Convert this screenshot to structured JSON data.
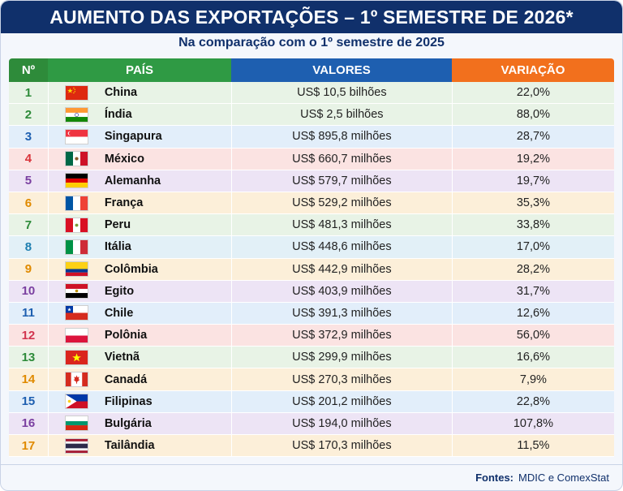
{
  "title": "AUMENTO DAS EXPORTAÇÕES – 1º SEMESTRE DE 2026*",
  "subtitle": "Na comparação com o 1º semestre de 2025",
  "columns": {
    "num": "Nº",
    "country": "PAÍS",
    "value": "VALORES",
    "change": "VARIAÇÃO"
  },
  "colors": {
    "green": "#2e8b3a",
    "blue": "#1e5fb0",
    "red": "#d9343b",
    "purple": "#7a3fa0",
    "orange": "#e08a00",
    "teal": "#1f7fb0",
    "pink": "#d2354f"
  },
  "rows": [
    {
      "num": "1",
      "country": "China",
      "value": "US$ 10,5 bilhões",
      "change": "22,0%",
      "flag": "china-flag",
      "bg": "#e8f3e6",
      "numColor": "#2e8b3a"
    },
    {
      "num": "2",
      "country": "Índia",
      "value": "US$ 2,5 bilhões",
      "change": "88,0%",
      "flag": "india-flag",
      "bg": "#e8f3e6",
      "numColor": "#2e8b3a"
    },
    {
      "num": "3",
      "country": "Singapura",
      "value": "US$ 895,8 milhões",
      "change": "28,7%",
      "flag": "singapore-flag",
      "bg": "#e2eefa",
      "numColor": "#1e5fb0"
    },
    {
      "num": "4",
      "country": "México",
      "value": "US$ 660,7 milhões",
      "change": "19,2%",
      "flag": "mexico-flag",
      "bg": "#fbe3e2",
      "numColor": "#d9343b"
    },
    {
      "num": "5",
      "country": "Alemanha",
      "value": "US$ 579,7 milhões",
      "change": "19,7%",
      "flag": "germany-flag",
      "bg": "#ede4f5",
      "numColor": "#7a3fa0"
    },
    {
      "num": "6",
      "country": "França",
      "value": "US$ 529,2 milhões",
      "change": "35,3%",
      "flag": "france-flag",
      "bg": "#fcefd9",
      "numColor": "#e08a00"
    },
    {
      "num": "7",
      "country": "Peru",
      "value": "US$ 481,3 milhões",
      "change": "33,8%",
      "flag": "peru-flag",
      "bg": "#e8f3e6",
      "numColor": "#2e8b3a"
    },
    {
      "num": "8",
      "country": "Itália",
      "value": "US$ 448,6 milhões",
      "change": "17,0%",
      "flag": "italy-flag",
      "bg": "#e2f0f7",
      "numColor": "#1f7fb0"
    },
    {
      "num": "9",
      "country": "Colômbia",
      "value": "US$ 442,9 milhões",
      "change": "28,2%",
      "flag": "colombia-flag",
      "bg": "#fcefd9",
      "numColor": "#e08a00"
    },
    {
      "num": "10",
      "country": "Egito",
      "value": "US$ 403,9 milhões",
      "change": "31,7%",
      "flag": "egypt-flag",
      "bg": "#ede4f5",
      "numColor": "#7a3fa0"
    },
    {
      "num": "11",
      "country": "Chile",
      "value": "US$ 391,3 milhões",
      "change": "12,6%",
      "flag": "chile-flag",
      "bg": "#e2eefa",
      "numColor": "#1e5fb0"
    },
    {
      "num": "12",
      "country": "Polônia",
      "value": "US$ 372,9 milhões",
      "change": "56,0%",
      "flag": "poland-flag",
      "bg": "#fbe3e2",
      "numColor": "#d2354f"
    },
    {
      "num": "13",
      "country": "Vietnã",
      "value": "US$ 299,9 milhões",
      "change": "16,6%",
      "flag": "vietnam-flag",
      "bg": "#e8f3e6",
      "numColor": "#2e8b3a"
    },
    {
      "num": "14",
      "country": "Canadá",
      "value": "US$ 270,3 milhões",
      "change": "7,9%",
      "flag": "canada-flag",
      "bg": "#fcefd9",
      "numColor": "#e08a00"
    },
    {
      "num": "15",
      "country": "Filipinas",
      "value": "US$ 201,2 milhões",
      "change": "22,8%",
      "flag": "philippines-flag",
      "bg": "#e2eefa",
      "numColor": "#1e5fb0"
    },
    {
      "num": "16",
      "country": "Bulgária",
      "value": "US$ 194,0 milhões",
      "change": "107,8%",
      "flag": "bulgaria-flag",
      "bg": "#ede4f5",
      "numColor": "#7a3fa0"
    },
    {
      "num": "17",
      "country": "Tailândia",
      "value": "US$ 170,3 milhões",
      "change": "11,5%",
      "flag": "thailand-flag",
      "bg": "#fcefd9",
      "numColor": "#e08a00"
    }
  ],
  "footer": {
    "label": "Fontes:",
    "sources": "MDIC e ComexStat"
  }
}
